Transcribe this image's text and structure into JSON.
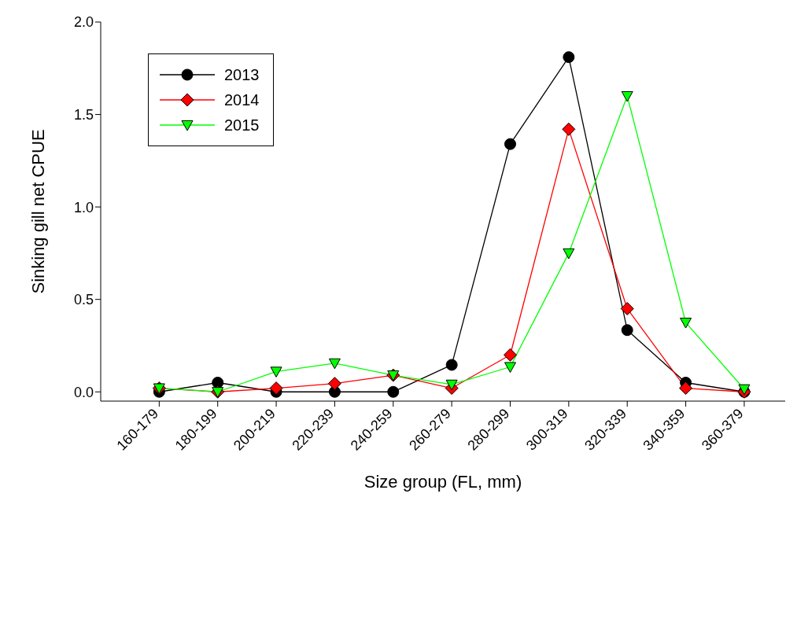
{
  "chart_data": {
    "type": "line",
    "xlabel": "Size group (FL, mm)",
    "ylabel": "Sinking gill net CPUE",
    "categories": [
      "160-179",
      "180-199",
      "200-219",
      "220-239",
      "240-259",
      "260-279",
      "280-299",
      "300-319",
      "320-339",
      "340-359",
      "360-379"
    ],
    "series": [
      {
        "name": "2013",
        "color": "#000000",
        "marker": "circle",
        "values": [
          0,
          0.05,
          0,
          0,
          0,
          0.146,
          1.34,
          1.81,
          0.334,
          0.05,
          0
        ]
      },
      {
        "name": "2014",
        "color": "#ff0000",
        "marker": "diamond",
        "values": [
          0.02,
          0,
          0.02,
          0.045,
          0.09,
          0.02,
          0.2,
          1.42,
          0.45,
          0.02,
          0
        ]
      },
      {
        "name": "2015",
        "color": "#00ff00",
        "marker": "triangle-down",
        "values": [
          0.02,
          0,
          0.11,
          0.155,
          0.09,
          0.04,
          0.135,
          0.75,
          1.6,
          0.375,
          0.015
        ]
      }
    ],
    "ylim": [
      -0.05,
      2.0
    ],
    "yticks": [
      {
        "value": 0,
        "label": "0.0"
      },
      {
        "value": 0.5,
        "label": "0.5"
      },
      {
        "value": 1,
        "label": "1.0"
      },
      {
        "value": 1.5,
        "label": "1.5"
      },
      {
        "value": 2,
        "label": "2.0"
      }
    ],
    "grid": false,
    "legend": "top left",
    "line_style": "solid"
  }
}
